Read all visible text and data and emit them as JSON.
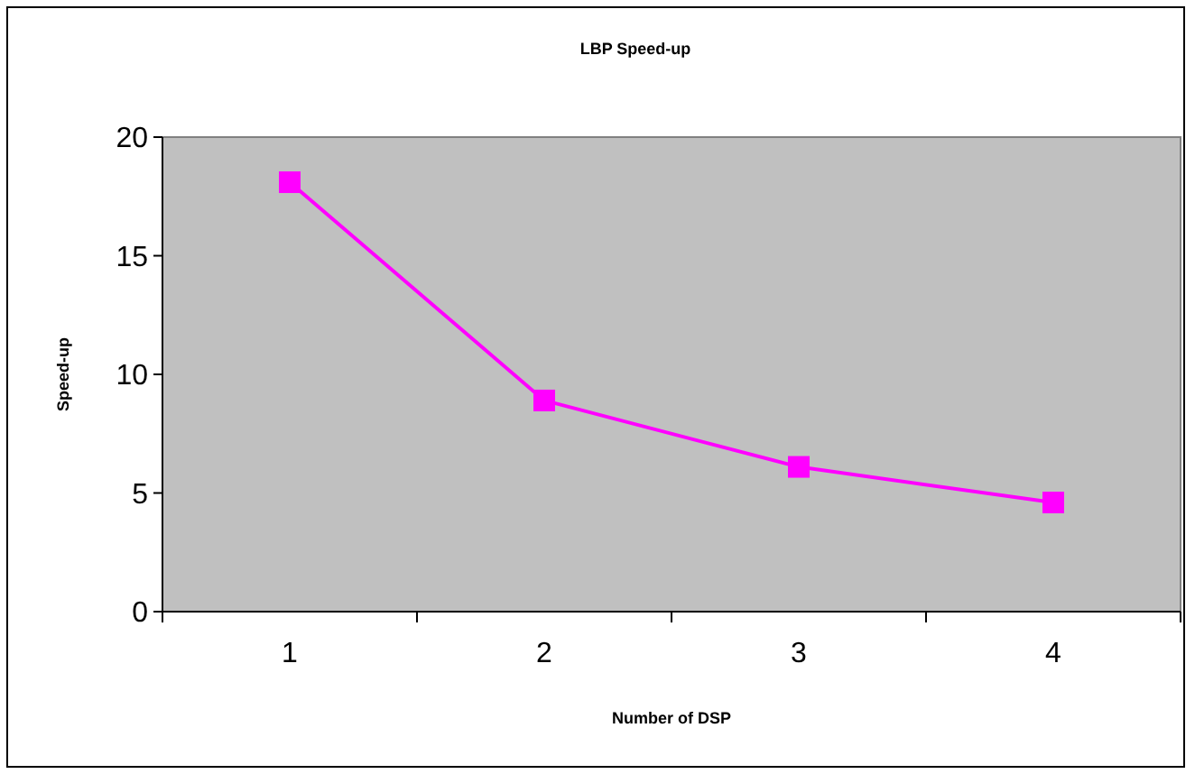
{
  "chart_data": {
    "type": "line",
    "title": "LBP Speed-up",
    "xlabel": "Number of DSP",
    "ylabel": "Speed-up",
    "categories": [
      "1",
      "2",
      "3",
      "4"
    ],
    "series": [
      {
        "color": "#ff00ff",
        "values": [
          18.1,
          8.9,
          6.1,
          4.6
        ]
      }
    ],
    "ylim": [
      0,
      20
    ],
    "yticks": [
      0,
      5,
      10,
      15,
      20
    ],
    "grid": false,
    "marker": "square",
    "line_style": "solid"
  }
}
